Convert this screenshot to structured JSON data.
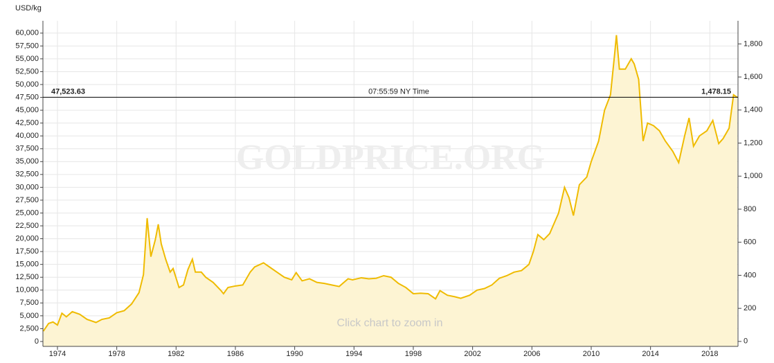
{
  "chart_data": {
    "type": "area",
    "y_unit": "USD/kg",
    "watermark": "GOLDPRICE.ORG",
    "hint": "Click chart to zoom in",
    "color": "#efbb00",
    "fill": "#fdf4d3",
    "grid": true,
    "reference_line": {
      "value": 47523.63,
      "value_label": "47,523.63",
      "y2_value": 1478.15,
      "y2_value_label": "1,478.15",
      "time": "07:55:59 NY Time"
    },
    "xlim": [
      1973.02,
      2019.9
    ],
    "xticks": [
      1974,
      1978,
      1982,
      1986,
      1990,
      1994,
      1998,
      2002,
      2006,
      2010,
      2014,
      2018
    ],
    "ylim": [
      -950,
      62400
    ],
    "yticks": [
      0,
      {
        "value": 2500,
        "label": "2,500"
      },
      {
        "value": 5000,
        "label": "5,000"
      },
      {
        "value": 7500,
        "label": "7,500"
      },
      {
        "value": 10000,
        "label": "10,000"
      },
      {
        "value": 12500,
        "label": "12,500"
      },
      {
        "value": 15000,
        "label": "15,000"
      },
      {
        "value": 17500,
        "label": "17,500"
      },
      {
        "value": 20000,
        "label": "20,000"
      },
      {
        "value": 22500,
        "label": "22,500"
      },
      {
        "value": 25000,
        "label": "25,000"
      },
      {
        "value": 27500,
        "label": "27,500"
      },
      {
        "value": 30000,
        "label": "30,000"
      },
      {
        "value": 32500,
        "label": "32,500"
      },
      {
        "value": 35000,
        "label": "35,000"
      },
      {
        "value": 37500,
        "label": "37,500"
      },
      {
        "value": 40000,
        "label": "40,000"
      },
      {
        "value": 42500,
        "label": "42,500"
      },
      {
        "value": 45000,
        "label": "45,000"
      },
      {
        "value": 47500,
        "label": "47,500"
      },
      {
        "value": 50000,
        "label": "50,000"
      },
      {
        "value": 52500,
        "label": "52,500"
      },
      {
        "value": 55000,
        "label": "55,000"
      },
      {
        "value": 57500,
        "label": "57,500"
      },
      {
        "value": 60000,
        "label": "60,000"
      }
    ],
    "y2lim": [
      -30,
      1940
    ],
    "y2ticks": [
      0,
      200,
      400,
      600,
      800,
      {
        "value": 1000,
        "label": "1,000"
      },
      {
        "value": 1200,
        "label": "1,200"
      },
      {
        "value": 1400,
        "label": "1,400"
      },
      {
        "value": 1600,
        "label": "1,600"
      },
      {
        "value": 1800,
        "label": "1,800"
      }
    ],
    "x": [
      1973.05,
      1973.4,
      1973.7,
      1974.0,
      1974.3,
      1974.6,
      1975.0,
      1975.5,
      1976.0,
      1976.6,
      1977.0,
      1977.5,
      1978.0,
      1978.5,
      1979.0,
      1979.5,
      1979.8,
      1980.05,
      1980.3,
      1980.6,
      1980.8,
      1981.0,
      1981.3,
      1981.6,
      1981.8,
      1982.2,
      1982.5,
      1982.8,
      1983.1,
      1983.3,
      1983.7,
      1984.0,
      1984.5,
      1985.0,
      1985.2,
      1985.5,
      1986.0,
      1986.5,
      1987.0,
      1987.3,
      1987.9,
      1988.3,
      1988.8,
      1989.3,
      1989.8,
      1990.1,
      1990.5,
      1991.0,
      1991.5,
      1992.0,
      1992.5,
      1993.0,
      1993.6,
      1993.9,
      1994.5,
      1995.0,
      1995.5,
      1996.0,
      1996.5,
      1997.0,
      1997.5,
      1998.0,
      1998.5,
      1999.0,
      1999.5,
      1999.8,
      2000.3,
      2000.8,
      2001.2,
      2001.8,
      2002.3,
      2002.8,
      2003.3,
      2003.8,
      2004.3,
      2004.8,
      2005.3,
      2005.8,
      2006.1,
      2006.4,
      2006.8,
      2007.2,
      2007.8,
      2008.2,
      2008.5,
      2008.8,
      2009.2,
      2009.7,
      2010.0,
      2010.5,
      2010.9,
      2011.3,
      2011.6,
      2011.7,
      2011.9,
      2012.3,
      2012.7,
      2012.9,
      2013.2,
      2013.5,
      2013.8,
      2014.2,
      2014.6,
      2015.0,
      2015.5,
      2015.9,
      2016.3,
      2016.6,
      2016.9,
      2017.3,
      2017.8,
      2018.2,
      2018.6,
      2018.9,
      2019.3,
      2019.6,
      2019.85
    ],
    "values": [
      2000,
      3500,
      3800,
      3200,
      5500,
      4800,
      5800,
      5300,
      4300,
      3700,
      4300,
      4600,
      5600,
      6000,
      7300,
      9500,
      13000,
      24000,
      16500,
      19800,
      22800,
      19000,
      16000,
      13500,
      14200,
      10500,
      11000,
      14000,
      16000,
      13500,
      13500,
      12500,
      11500,
      10000,
      9300,
      10500,
      10800,
      11000,
      13500,
      14500,
      15300,
      14500,
      13500,
      12500,
      12000,
      13400,
      11800,
      12200,
      11500,
      11300,
      11000,
      10700,
      12200,
      12000,
      12400,
      12200,
      12300,
      12800,
      12500,
      11300,
      10500,
      9300,
      9400,
      9300,
      8300,
      9900,
      9000,
      8700,
      8400,
      9000,
      10000,
      10300,
      11000,
      12300,
      12800,
      13500,
      13800,
      15000,
      17500,
      20800,
      19800,
      21000,
      25000,
      30000,
      28000,
      24500,
      30500,
      32000,
      35000,
      39000,
      45000,
      48000,
      56500,
      59600,
      53000,
      53000,
      55000,
      54000,
      51000,
      39000,
      42500,
      42000,
      41000,
      39000,
      37000,
      34800,
      40000,
      43500,
      38000,
      40000,
      41000,
      43000,
      38500,
      39500,
      41500,
      48000,
      47500
    ]
  }
}
